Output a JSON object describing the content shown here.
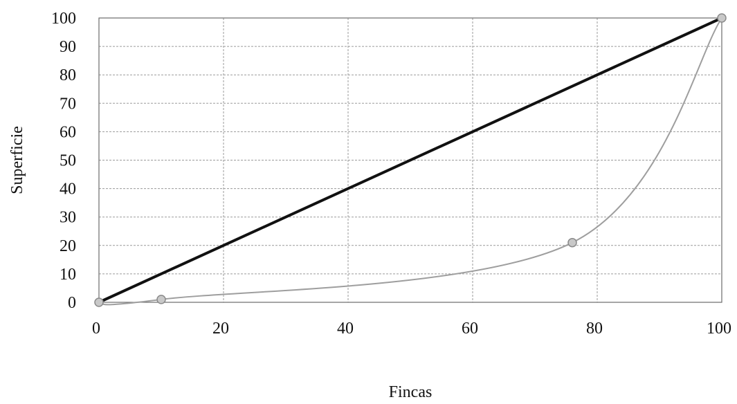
{
  "chart_data": {
    "type": "line",
    "title": "",
    "xlabel": "Fincas",
    "ylabel": "Superficie",
    "xlim": [
      0,
      100
    ],
    "ylim": [
      0,
      100
    ],
    "x_ticks": [
      0,
      20,
      40,
      60,
      80,
      100
    ],
    "y_ticks": [
      0,
      10,
      20,
      30,
      40,
      50,
      60,
      70,
      80,
      90,
      100
    ],
    "grid": true,
    "legend": "none",
    "series": [
      {
        "color": "#111111",
        "markers": false,
        "points": [
          [
            0,
            0
          ],
          [
            100,
            100
          ]
        ]
      },
      {
        "color": "#9e9e9e",
        "markers": true,
        "smooth": true,
        "points": [
          [
            0,
            0
          ],
          [
            10,
            1
          ],
          [
            76,
            21
          ],
          [
            100,
            100
          ]
        ]
      }
    ]
  }
}
